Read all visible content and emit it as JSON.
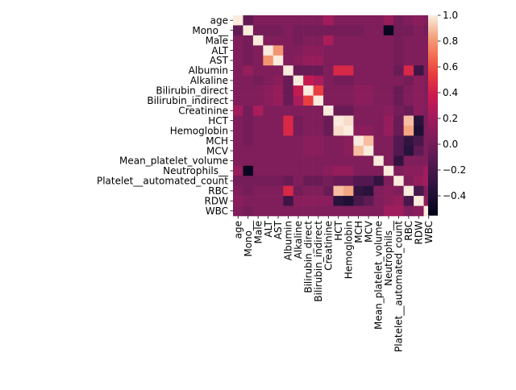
{
  "chart_data": {
    "type": "heatmap",
    "labels": [
      "age",
      "Mono__",
      "Male",
      "ALT",
      "AST",
      "Albumin",
      "Alkaline",
      "Bilirubin_direct",
      "Bilirubin_indirect",
      "Creatinine",
      "HCT",
      "Hemoglobin",
      "MCH",
      "MCV",
      "Mean_platelet_volume",
      "Neutrophils__",
      "Platelet__automated_count",
      "RBC",
      "RDW",
      "WBC"
    ],
    "matrix": [
      [
        1.0,
        -0.08,
        0.05,
        0.05,
        0.05,
        0.05,
        0.05,
        0.05,
        0.05,
        0.2,
        0.05,
        0.05,
        0.05,
        0.05,
        0.05,
        0.15,
        0.0,
        0.05,
        0.1,
        0.05
      ],
      [
        -0.08,
        1.0,
        0.0,
        0.0,
        0.0,
        0.05,
        0.0,
        0.0,
        0.0,
        0.0,
        0.0,
        0.0,
        0.0,
        0.05,
        0.05,
        -0.52,
        0.0,
        0.0,
        0.05,
        0.0
      ],
      [
        0.05,
        0.0,
        1.0,
        0.05,
        0.05,
        0.05,
        0.0,
        0.05,
        0.05,
        0.25,
        0.05,
        0.05,
        0.05,
        0.05,
        0.05,
        0.05,
        0.0,
        0.05,
        0.05,
        0.05
      ],
      [
        0.05,
        0.0,
        0.05,
        1.0,
        0.8,
        0.05,
        0.05,
        0.1,
        0.1,
        0.05,
        0.05,
        0.05,
        0.05,
        0.05,
        0.05,
        0.05,
        0.0,
        0.05,
        0.05,
        0.05
      ],
      [
        0.05,
        0.0,
        0.05,
        0.8,
        1.0,
        0.05,
        0.1,
        0.15,
        0.15,
        0.05,
        0.05,
        0.05,
        0.05,
        0.05,
        0.05,
        0.05,
        0.0,
        0.05,
        0.05,
        0.05
      ],
      [
        0.05,
        0.15,
        0.05,
        0.05,
        0.05,
        1.0,
        -0.05,
        -0.05,
        -0.05,
        0.05,
        0.45,
        0.45,
        0.05,
        0.05,
        0.05,
        0.05,
        -0.05,
        0.45,
        -0.25,
        0.05
      ],
      [
        0.05,
        0.05,
        0.0,
        0.05,
        0.1,
        -0.05,
        1.0,
        0.35,
        0.25,
        0.05,
        0.0,
        0.0,
        0.05,
        0.05,
        0.05,
        0.05,
        0.05,
        0.0,
        0.1,
        0.05
      ],
      [
        0.05,
        0.05,
        0.05,
        0.1,
        0.15,
        -0.05,
        0.35,
        1.0,
        0.55,
        0.05,
        0.05,
        0.05,
        0.1,
        0.1,
        0.05,
        0.05,
        -0.05,
        0.05,
        0.1,
        0.05
      ],
      [
        0.05,
        0.05,
        0.05,
        0.1,
        0.15,
        -0.05,
        0.25,
        0.55,
        1.0,
        0.05,
        0.05,
        0.05,
        0.1,
        0.1,
        0.05,
        0.05,
        -0.05,
        0.05,
        0.1,
        0.05
      ],
      [
        0.2,
        0.0,
        0.25,
        0.05,
        0.05,
        0.05,
        0.05,
        0.05,
        0.05,
        1.0,
        -0.05,
        -0.05,
        0.05,
        0.05,
        0.05,
        0.1,
        0.0,
        -0.05,
        0.1,
        0.05
      ],
      [
        0.05,
        0.0,
        0.05,
        0.05,
        0.05,
        0.45,
        0.0,
        0.05,
        0.05,
        -0.05,
        1.0,
        0.97,
        0.05,
        0.05,
        0.05,
        0.15,
        -0.05,
        0.9,
        -0.35,
        0.05
      ],
      [
        0.05,
        0.0,
        0.05,
        0.05,
        0.05,
        0.45,
        0.0,
        0.05,
        0.05,
        -0.05,
        0.97,
        1.0,
        0.1,
        0.1,
        0.05,
        0.15,
        -0.05,
        0.85,
        -0.4,
        0.05
      ],
      [
        0.05,
        0.0,
        0.05,
        0.05,
        0.05,
        0.05,
        0.05,
        0.1,
        0.1,
        0.05,
        0.05,
        0.1,
        1.0,
        0.9,
        0.05,
        0.05,
        -0.15,
        -0.3,
        -0.2,
        0.05
      ],
      [
        0.05,
        0.05,
        0.05,
        0.05,
        0.05,
        0.05,
        0.05,
        0.1,
        0.1,
        0.05,
        0.05,
        0.1,
        0.9,
        1.0,
        0.05,
        0.05,
        -0.15,
        -0.35,
        -0.1,
        0.05
      ],
      [
        0.05,
        0.05,
        0.05,
        0.05,
        0.05,
        0.05,
        0.05,
        0.05,
        0.05,
        0.05,
        0.05,
        0.05,
        0.05,
        0.05,
        1.0,
        0.05,
        -0.3,
        0.05,
        0.05,
        0.05
      ],
      [
        0.15,
        -0.52,
        0.05,
        0.05,
        0.05,
        0.05,
        0.05,
        0.05,
        0.05,
        0.1,
        0.15,
        0.15,
        0.05,
        0.05,
        0.05,
        1.0,
        0.05,
        0.1,
        0.1,
        0.2
      ],
      [
        0.0,
        0.0,
        0.0,
        0.0,
        0.0,
        -0.05,
        0.05,
        -0.05,
        -0.05,
        0.0,
        -0.05,
        -0.05,
        -0.15,
        -0.15,
        -0.3,
        0.05,
        1.0,
        0.05,
        0.15,
        0.2
      ],
      [
        0.05,
        0.0,
        0.05,
        0.05,
        0.05,
        0.45,
        0.0,
        0.05,
        0.05,
        -0.05,
        0.9,
        0.85,
        -0.3,
        -0.35,
        0.05,
        0.1,
        0.05,
        1.0,
        -0.2,
        0.05
      ],
      [
        0.1,
        0.05,
        0.05,
        0.05,
        0.05,
        -0.25,
        0.1,
        0.1,
        0.1,
        0.1,
        -0.35,
        -0.4,
        -0.2,
        -0.1,
        0.05,
        0.1,
        0.15,
        -0.2,
        1.0,
        0.1
      ],
      [
        0.05,
        0.0,
        0.05,
        0.05,
        0.05,
        0.05,
        0.05,
        0.05,
        0.05,
        0.05,
        0.05,
        0.05,
        0.05,
        0.05,
        0.05,
        0.2,
        0.2,
        0.05,
        0.1,
        1.0
      ]
    ],
    "vmin": -0.55,
    "vmax": 1.0,
    "colorbar": {
      "ticks": [
        1.0,
        0.8,
        0.6,
        0.4,
        0.2,
        0.0,
        -0.2,
        -0.4
      ],
      "tick_labels": [
        "1.0",
        "0.8",
        "0.6",
        "0.4",
        "0.2",
        "0.0",
        "−0.2",
        "−0.4"
      ]
    },
    "colormap": "rocket",
    "title": "",
    "xlabel": "",
    "ylabel": "",
    "grid": false
  }
}
